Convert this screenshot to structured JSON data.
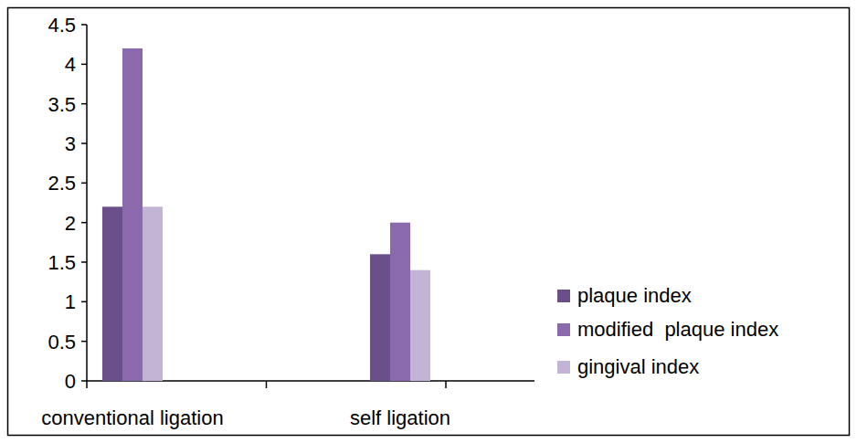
{
  "chart_data": {
    "type": "bar",
    "categories": [
      "conventional ligation",
      "self ligation"
    ],
    "series": [
      {
        "name": "plaque index",
        "color": "#6b4f8a",
        "values": [
          2.2,
          1.6
        ]
      },
      {
        "name": "modified  plaque index",
        "color": "#8a6aad",
        "values": [
          4.2,
          2.0
        ]
      },
      {
        "name": "gingival index",
        "color": "#c3b4d6",
        "values": [
          2.2,
          1.4
        ]
      }
    ],
    "ylim": [
      0,
      4.5
    ],
    "yticks": [
      0,
      0.5,
      1,
      1.5,
      2,
      2.5,
      3,
      3.5,
      4,
      4.5
    ],
    "grid": false,
    "legend": "right"
  }
}
